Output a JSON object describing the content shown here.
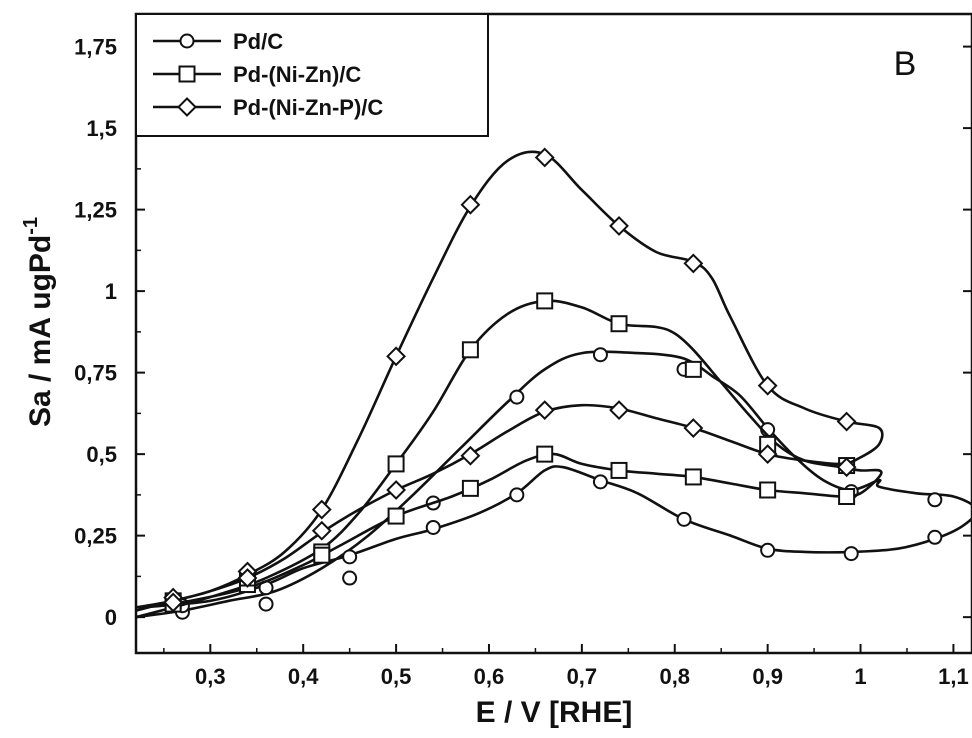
{
  "chart_data": {
    "type": "line",
    "panel_label": "B",
    "xlabel": "E / V [RHE]",
    "ylabel_main": "Sa / mA ugPd",
    "ylabel_sup": "-1",
    "xlim": [
      0.22,
      1.12
    ],
    "ylim": [
      -0.11,
      1.85
    ],
    "x_ticks": [
      {
        "value": 0.3,
        "label": "0,3"
      },
      {
        "value": 0.4,
        "label": "0,4"
      },
      {
        "value": 0.5,
        "label": "0,5"
      },
      {
        "value": 0.6,
        "label": "0,6"
      },
      {
        "value": 0.7,
        "label": "0,7"
      },
      {
        "value": 0.8,
        "label": "0,8"
      },
      {
        "value": 0.9,
        "label": "0,9"
      },
      {
        "value": 1.0,
        "label": "1"
      },
      {
        "value": 1.1,
        "label": "1,1"
      }
    ],
    "y_ticks": [
      {
        "value": 0,
        "label": "0"
      },
      {
        "value": 0.25,
        "label": "0,25"
      },
      {
        "value": 0.5,
        "label": "0,5"
      },
      {
        "value": 0.75,
        "label": "0,75"
      },
      {
        "value": 1.0,
        "label": "1"
      },
      {
        "value": 1.25,
        "label": "1,25"
      },
      {
        "value": 1.5,
        "label": "1,5"
      },
      {
        "value": 1.75,
        "label": "1,75"
      }
    ],
    "legend_position": "top-left",
    "grid": false,
    "series": [
      {
        "name": "Pd/C",
        "marker": "circle",
        "line": [
          [
            0.22,
            0.0
          ],
          [
            0.27,
            0.02
          ],
          [
            0.32,
            0.05
          ],
          [
            0.37,
            0.08
          ],
          [
            0.42,
            0.15
          ],
          [
            0.47,
            0.25
          ],
          [
            0.52,
            0.38
          ],
          [
            0.57,
            0.52
          ],
          [
            0.62,
            0.66
          ],
          [
            0.66,
            0.76
          ],
          [
            0.7,
            0.81
          ],
          [
            0.76,
            0.81
          ],
          [
            0.8,
            0.8
          ],
          [
            0.82,
            0.78
          ],
          [
            0.84,
            0.74
          ],
          [
            0.87,
            0.68
          ],
          [
            0.9,
            0.58
          ],
          [
            0.93,
            0.49
          ],
          [
            0.96,
            0.42
          ],
          [
            0.99,
            0.39
          ],
          [
            1.02,
            0.42
          ],
          [
            1.02,
            0.4
          ],
          [
            1.06,
            0.38
          ],
          [
            1.1,
            0.37
          ],
          [
            1.125,
            0.33
          ],
          [
            1.11,
            0.28
          ],
          [
            1.08,
            0.24
          ],
          [
            1.04,
            0.21
          ],
          [
            0.99,
            0.2
          ],
          [
            0.94,
            0.2
          ],
          [
            0.9,
            0.21
          ],
          [
            0.86,
            0.25
          ],
          [
            0.81,
            0.3
          ],
          [
            0.76,
            0.38
          ],
          [
            0.72,
            0.42
          ],
          [
            0.68,
            0.46
          ],
          [
            0.66,
            0.45
          ],
          [
            0.63,
            0.38
          ],
          [
            0.59,
            0.32
          ],
          [
            0.54,
            0.27
          ],
          [
            0.5,
            0.24
          ],
          [
            0.45,
            0.19
          ],
          [
            0.4,
            0.15
          ],
          [
            0.36,
            0.1
          ],
          [
            0.3,
            0.05
          ],
          [
            0.22,
            0.03
          ]
        ],
        "markers": [
          [
            0.27,
            0.015
          ],
          [
            0.36,
            0.04
          ],
          [
            0.45,
            0.12
          ],
          [
            0.54,
            0.35
          ],
          [
            0.63,
            0.675
          ],
          [
            0.72,
            0.805
          ],
          [
            0.81,
            0.76
          ],
          [
            0.9,
            0.575
          ],
          [
            0.99,
            0.385
          ],
          [
            1.08,
            0.36
          ],
          [
            1.08,
            0.245
          ],
          [
            0.99,
            0.195
          ],
          [
            0.9,
            0.205
          ],
          [
            0.81,
            0.3
          ],
          [
            0.72,
            0.415
          ],
          [
            0.63,
            0.375
          ],
          [
            0.54,
            0.275
          ],
          [
            0.45,
            0.185
          ],
          [
            0.36,
            0.09
          ],
          [
            0.27,
            0.035
          ]
        ]
      },
      {
        "name": "Pd-(Ni-Zn)/C",
        "marker": "square",
        "line": [
          [
            0.22,
            0.0
          ],
          [
            0.26,
            0.03
          ],
          [
            0.31,
            0.07
          ],
          [
            0.36,
            0.12
          ],
          [
            0.42,
            0.21
          ],
          [
            0.46,
            0.32
          ],
          [
            0.5,
            0.47
          ],
          [
            0.54,
            0.63
          ],
          [
            0.58,
            0.82
          ],
          [
            0.62,
            0.93
          ],
          [
            0.66,
            0.97
          ],
          [
            0.7,
            0.95
          ],
          [
            0.74,
            0.9
          ],
          [
            0.78,
            0.89
          ],
          [
            0.8,
            0.87
          ],
          [
            0.82,
            0.82
          ],
          [
            0.85,
            0.72
          ],
          [
            0.88,
            0.62
          ],
          [
            0.91,
            0.53
          ],
          [
            0.94,
            0.48
          ],
          [
            0.98,
            0.46
          ],
          [
            1.0,
            0.45
          ],
          [
            1.02,
            0.45
          ],
          [
            1.02,
            0.43
          ],
          [
            1.0,
            0.38
          ],
          [
            0.98,
            0.37
          ],
          [
            0.94,
            0.38
          ],
          [
            0.9,
            0.39
          ],
          [
            0.86,
            0.41
          ],
          [
            0.82,
            0.43
          ],
          [
            0.78,
            0.44
          ],
          [
            0.74,
            0.45
          ],
          [
            0.7,
            0.47
          ],
          [
            0.67,
            0.5
          ],
          [
            0.64,
            0.48
          ],
          [
            0.6,
            0.42
          ],
          [
            0.56,
            0.37
          ],
          [
            0.5,
            0.31
          ],
          [
            0.44,
            0.22
          ],
          [
            0.4,
            0.16
          ],
          [
            0.34,
            0.09
          ],
          [
            0.26,
            0.04
          ],
          [
            0.22,
            0.03
          ]
        ],
        "markers": [
          [
            0.26,
            0.05
          ],
          [
            0.34,
            0.1
          ],
          [
            0.42,
            0.2
          ],
          [
            0.5,
            0.47
          ],
          [
            0.58,
            0.82
          ],
          [
            0.66,
            0.97
          ],
          [
            0.74,
            0.9
          ],
          [
            0.82,
            0.76
          ],
          [
            0.9,
            0.53
          ],
          [
            0.985,
            0.465
          ],
          [
            0.985,
            0.37
          ],
          [
            0.9,
            0.39
          ],
          [
            0.82,
            0.43
          ],
          [
            0.74,
            0.45
          ],
          [
            0.66,
            0.5
          ],
          [
            0.58,
            0.395
          ],
          [
            0.5,
            0.31
          ],
          [
            0.42,
            0.19
          ],
          [
            0.34,
            0.12
          ],
          [
            0.26,
            0.04
          ]
        ]
      },
      {
        "name": "Pd-(Ni-Zn-P)/C",
        "marker": "diamond",
        "line": [
          [
            0.22,
            0.02
          ],
          [
            0.26,
            0.05
          ],
          [
            0.3,
            0.08
          ],
          [
            0.34,
            0.13
          ],
          [
            0.38,
            0.2
          ],
          [
            0.42,
            0.33
          ],
          [
            0.46,
            0.55
          ],
          [
            0.5,
            0.8
          ],
          [
            0.54,
            1.04
          ],
          [
            0.58,
            1.26
          ],
          [
            0.62,
            1.4
          ],
          [
            0.66,
            1.42
          ],
          [
            0.7,
            1.31
          ],
          [
            0.74,
            1.2
          ],
          [
            0.78,
            1.12
          ],
          [
            0.82,
            1.09
          ],
          [
            0.84,
            1.04
          ],
          [
            0.86,
            0.92
          ],
          [
            0.9,
            0.71
          ],
          [
            0.94,
            0.64
          ],
          [
            0.985,
            0.6
          ],
          [
            1.02,
            0.58
          ],
          [
            1.02,
            0.53
          ],
          [
            1.0,
            0.49
          ],
          [
            0.98,
            0.47
          ],
          [
            0.94,
            0.48
          ],
          [
            0.9,
            0.5
          ],
          [
            0.86,
            0.54
          ],
          [
            0.82,
            0.58
          ],
          [
            0.78,
            0.61
          ],
          [
            0.74,
            0.64
          ],
          [
            0.7,
            0.65
          ],
          [
            0.66,
            0.63
          ],
          [
            0.62,
            0.57
          ],
          [
            0.58,
            0.5
          ],
          [
            0.54,
            0.44
          ],
          [
            0.5,
            0.39
          ],
          [
            0.46,
            0.33
          ],
          [
            0.42,
            0.26
          ],
          [
            0.38,
            0.18
          ],
          [
            0.34,
            0.12
          ],
          [
            0.3,
            0.08
          ],
          [
            0.26,
            0.05
          ],
          [
            0.22,
            0.03
          ]
        ],
        "markers": [
          [
            0.26,
            0.06
          ],
          [
            0.34,
            0.14
          ],
          [
            0.42,
            0.33
          ],
          [
            0.5,
            0.8
          ],
          [
            0.58,
            1.265
          ],
          [
            0.66,
            1.41
          ],
          [
            0.74,
            1.2
          ],
          [
            0.82,
            1.085
          ],
          [
            0.9,
            0.71
          ],
          [
            0.985,
            0.6
          ],
          [
            0.985,
            0.46
          ],
          [
            0.9,
            0.5
          ],
          [
            0.82,
            0.58
          ],
          [
            0.74,
            0.635
          ],
          [
            0.66,
            0.635
          ],
          [
            0.58,
            0.495
          ],
          [
            0.5,
            0.39
          ],
          [
            0.42,
            0.265
          ],
          [
            0.34,
            0.12
          ],
          [
            0.26,
            0.045
          ]
        ]
      }
    ]
  }
}
